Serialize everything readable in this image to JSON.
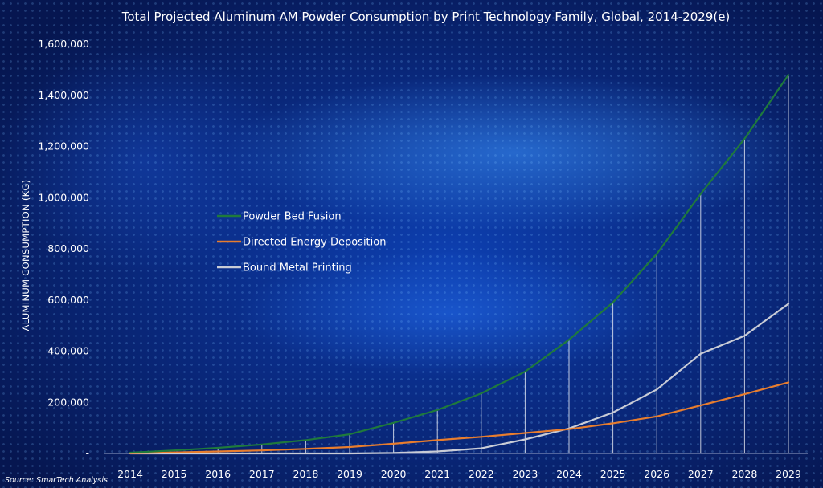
{
  "chart_data": {
    "type": "line",
    "title": "Total Projected Aluminum  AM Powder Consumption  by Print Technology Family, Global, 2014-2029(e)",
    "ylabel": "ALUMINUM  CONSUMPTION (KG)",
    "xlabel": "",
    "source": "Source: SmarTech Analysis",
    "categories": [
      "2014",
      "2015",
      "2016",
      "2017",
      "2018",
      "2019",
      "2020",
      "2021",
      "2022",
      "2023",
      "2024",
      "2025",
      "2026",
      "2027",
      "2028",
      "2029"
    ],
    "ylim": [
      0,
      1600000
    ],
    "yticks": [
      0,
      200000,
      400000,
      600000,
      800000,
      1000000,
      1200000,
      1400000,
      1600000
    ],
    "ytick_labels": [
      "-",
      "200,000",
      "400,000",
      "600,000",
      "800,000",
      "1,000,000",
      "1,200,000",
      "1,400,000",
      "1,600,000"
    ],
    "vertical_droplines": true,
    "grid": false,
    "legend_placement": "center-left",
    "series": [
      {
        "name": "Powder Bed Fusion",
        "color": "#1f7a3c",
        "values": [
          3000,
          12000,
          22000,
          35000,
          52000,
          75000,
          120000,
          170000,
          235000,
          320000,
          445000,
          590000,
          780000,
          1015000,
          1230000,
          1480000
        ]
      },
      {
        "name": "Directed Energy Deposition",
        "color": "#e87d2e",
        "values": [
          1000,
          4000,
          8000,
          12000,
          18000,
          25000,
          38000,
          52000,
          65000,
          80000,
          95000,
          118000,
          145000,
          188000,
          232000,
          278000
        ]
      },
      {
        "name": "Bound Metal Printing",
        "color": "#c9ccd6",
        "values": [
          0,
          0,
          0,
          0,
          0,
          0,
          2000,
          8000,
          20000,
          55000,
          98000,
          160000,
          250000,
          390000,
          460000,
          585000
        ]
      }
    ]
  }
}
